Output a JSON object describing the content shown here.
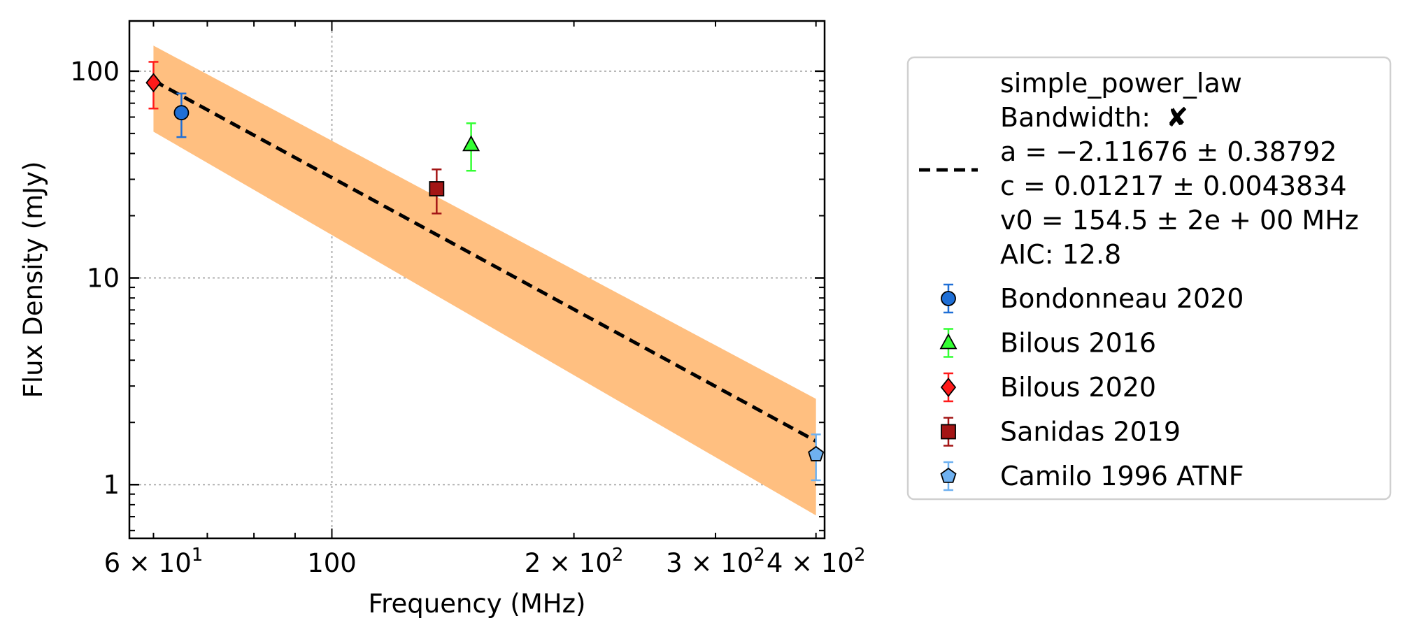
{
  "chart_data": {
    "type": "scatter",
    "xlabel": "Frequency (MHz)",
    "ylabel": "Flux Density (mJy)",
    "xscale": "log",
    "yscale": "log",
    "xlim": [
      56,
      410
    ],
    "ylim": [
      0.55,
      175
    ],
    "grid": true,
    "legend_position": "outside-right",
    "x_ticks": [
      {
        "value": 60,
        "base": "6 × 10",
        "exp": "1"
      },
      {
        "value": 100,
        "base": "100",
        "exp": ""
      },
      {
        "value": 200,
        "base": "2 × 10",
        "exp": "2"
      },
      {
        "value": 300,
        "base": "3 × 10",
        "exp": "2"
      },
      {
        "value": 400,
        "base": "4 × 10",
        "exp": "2"
      }
    ],
    "y_ticks": [
      {
        "value": 1,
        "label": "1"
      },
      {
        "value": 10,
        "label": "10"
      },
      {
        "value": 100,
        "label": "100"
      }
    ],
    "fit": {
      "name": "simple_power_law",
      "bandwidth_label": "Bandwidth:",
      "bandwidth_mark": "✘",
      "a_text": "a = −2.11676 ± 0.38792",
      "c_text": "c = 0.01217 ± 0.0043834",
      "v0_text": "v0 = 154.5 ± 2e + 00 MHz",
      "aic_text": "AIC: 12.8",
      "a": -2.11676,
      "c": 0.01217,
      "v0": 154.5,
      "line_color": "#000000",
      "band_color": "#ffbf80",
      "band": {
        "x": [
          60,
          400
        ],
        "lower": [
          51,
          0.71
        ],
        "upper": [
          133,
          2.6
        ]
      }
    },
    "series": [
      {
        "name": "Bondonneau 2020",
        "marker": "circle",
        "color": "#1f6fd6",
        "error_color": "#1f6fd6",
        "points": [
          {
            "x": 65,
            "y": 63,
            "yerr_low": 48,
            "yerr_high": 78
          }
        ]
      },
      {
        "name": "Bilous 2016",
        "marker": "triangle",
        "color": "#33ff33",
        "error_color": "#33ff33",
        "points": [
          {
            "x": 149,
            "y": 44,
            "yerr_low": 33,
            "yerr_high": 56
          }
        ]
      },
      {
        "name": "Bilous 2020",
        "marker": "diamond",
        "color": "#ff1a1a",
        "error_color": "#ff1a1a",
        "points": [
          {
            "x": 60,
            "y": 88,
            "yerr_low": 66,
            "yerr_high": 111
          }
        ]
      },
      {
        "name": "Sanidas 2019",
        "marker": "square",
        "color": "#a31515",
        "error_color": "#a31515",
        "points": [
          {
            "x": 135,
            "y": 27,
            "yerr_low": 20.5,
            "yerr_high": 33.5
          }
        ]
      },
      {
        "name": "Camilo 1996 ATNF",
        "marker": "pentagon",
        "color": "#6fb1f0",
        "error_color": "#6fb1f0",
        "points": [
          {
            "x": 400,
            "y": 1.4,
            "yerr_low": 1.05,
            "yerr_high": 1.75
          }
        ]
      }
    ]
  }
}
